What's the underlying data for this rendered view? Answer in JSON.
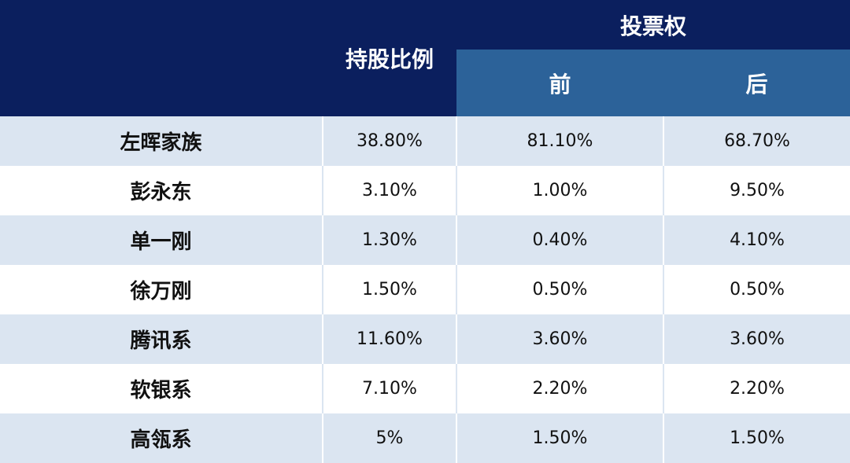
{
  "table": {
    "header": {
      "share": "持股比例",
      "vote_group": "投票权",
      "vote_before": "前",
      "vote_after": "后"
    },
    "rows": [
      [
        "左晖家族",
        "38.80%",
        "81.10%",
        "68.70%"
      ],
      [
        "彭永东",
        "3.10%",
        "1.00%",
        "9.50%"
      ],
      [
        "单一刚",
        "1.30%",
        "0.40%",
        "4.10%"
      ],
      [
        "徐万刚",
        "1.50%",
        "0.50%",
        "0.50%"
      ],
      [
        "腾讯系",
        "11.60%",
        "3.60%",
        "3.60%"
      ],
      [
        "软银系",
        "7.10%",
        "2.20%",
        "2.20%"
      ],
      [
        "高瓴系",
        "5%",
        "1.50%",
        "1.50%"
      ]
    ]
  }
}
